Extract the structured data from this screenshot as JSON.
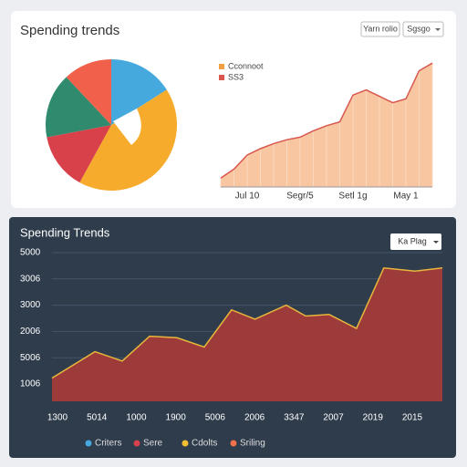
{
  "header": {
    "title": "Spending trends",
    "buttons": [
      "Yarn rolio",
      "Sgsgo"
    ]
  },
  "chart_data": [
    {
      "type": "pie",
      "categories": [
        null,
        null,
        null,
        null,
        null
      ],
      "values": [
        16,
        42,
        14,
        16,
        12
      ],
      "colors": [
        "#45a9dd",
        "#f7ab2c",
        "#d8404a",
        "#2f8a6e",
        "#f0604a"
      ]
    },
    {
      "type": "area-line",
      "categories": [
        null,
        null,
        "Jul 10",
        null,
        null,
        null,
        "Segr/5",
        null,
        null,
        null,
        "Setl 1g",
        null,
        null,
        null,
        "May 1",
        null,
        null
      ],
      "series": [
        {
          "name": "Cconnoot",
          "color": "#f0a040",
          "values": [
            7,
            14,
            25,
            30,
            34,
            37,
            39,
            44,
            48,
            51,
            72,
            76,
            71,
            66,
            69,
            91,
            97
          ]
        },
        {
          "name": "SS3",
          "color": "#d8574e"
        }
      ],
      "ylim": [
        0,
        100
      ]
    },
    {
      "type": "area",
      "title": "Spending Trends",
      "button": "Ka Plag",
      "y_labels": [
        "5000",
        "3006",
        "3000",
        "2006",
        "5006",
        "1006"
      ],
      "x_labels": [
        "1300",
        "5014",
        "1000",
        "1900",
        "5006",
        "2006",
        "3347",
        "2007",
        "2019",
        "2015"
      ],
      "x": [
        0,
        11,
        18,
        25,
        32,
        39,
        46,
        52,
        60,
        65,
        71,
        78,
        85,
        93,
        100
      ],
      "values": [
        15,
        32,
        26,
        42,
        41,
        35,
        59,
        53,
        62,
        55,
        56,
        47,
        86,
        84,
        86
      ],
      "xlim": [
        0,
        100
      ],
      "ylim": [
        0,
        100
      ],
      "color": "#9c3b3a",
      "line_color": "#e8b63c",
      "grid": true,
      "legend": [
        {
          "name": "Criters",
          "color": "#45a9dd"
        },
        {
          "name": "Sere",
          "color": "#d8404a"
        },
        {
          "name": "Cdolts",
          "color": "#f0c030"
        },
        {
          "name": "Sriling",
          "color": "#f0704a"
        }
      ]
    }
  ]
}
